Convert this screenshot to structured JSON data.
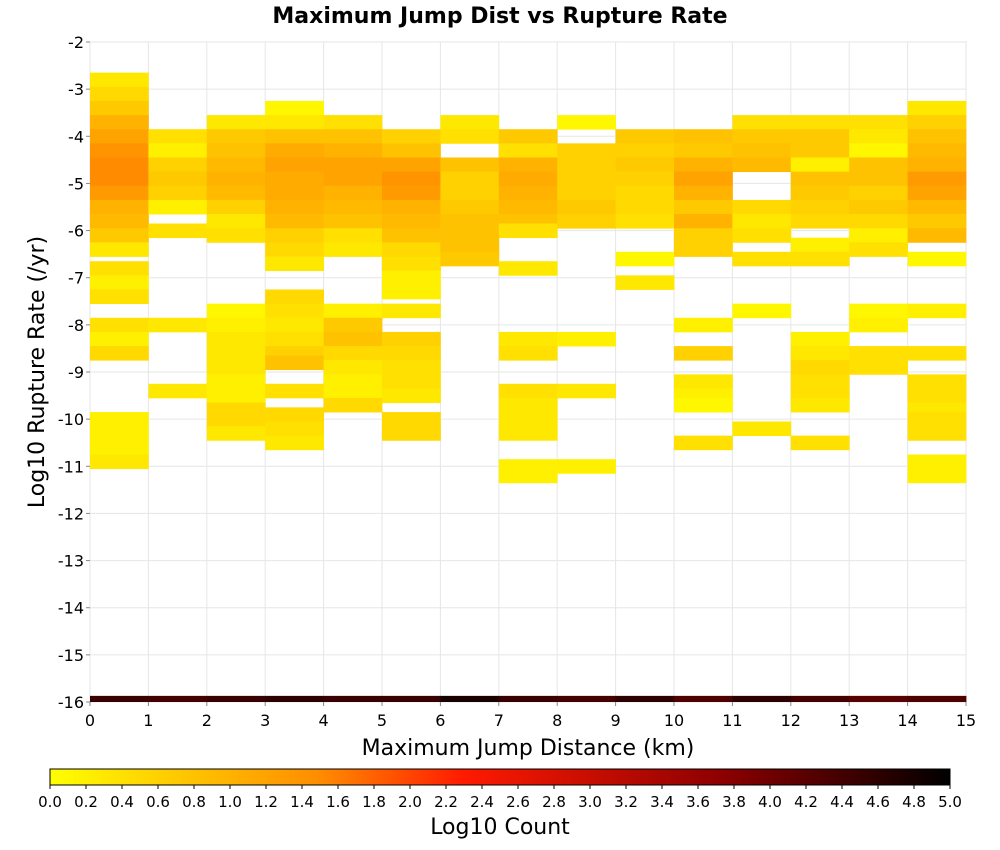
{
  "chart_data": {
    "type": "heatmap",
    "title": "Maximum Jump Dist vs Rupture Rate",
    "xlabel": "Maximum Jump Distance (km)",
    "ylabel": "Log10 Rupture Rate (/yr)",
    "xlim": [
      0,
      15
    ],
    "ylim": [
      -16,
      -2
    ],
    "x_ticks": [
      0,
      1,
      2,
      3,
      4,
      5,
      6,
      7,
      8,
      9,
      10,
      11,
      12,
      13,
      14,
      15
    ],
    "y_ticks": [
      -2,
      -3,
      -4,
      -5,
      -6,
      -7,
      -8,
      -9,
      -10,
      -11,
      -12,
      -13,
      -14,
      -15,
      -16
    ],
    "x_bin_width": 1,
    "y_bin_height": 0.3,
    "grid": true,
    "colorbar": {
      "label": "Log10 Count",
      "min": 0.0,
      "max": 5.0,
      "ticks": [
        "0.0",
        "0.2",
        "0.4",
        "0.6",
        "0.8",
        "1.0",
        "1.2",
        "1.4",
        "1.6",
        "1.8",
        "2.0",
        "2.2",
        "2.4",
        "2.6",
        "2.8",
        "3.0",
        "3.2",
        "3.4",
        "3.6",
        "3.8",
        "4.0",
        "4.2",
        "4.4",
        "4.6",
        "4.8",
        "5.0"
      ],
      "colors": [
        "#ffff00",
        "#ff6a00",
        "#ff0000",
        "#7f0000",
        "#000000"
      ]
    },
    "cells": [
      [
        0,
        -2.8,
        0.3
      ],
      [
        0,
        -3.1,
        0.5
      ],
      [
        0,
        -3.4,
        0.7
      ],
      [
        0,
        -3.7,
        1.0
      ],
      [
        0,
        -4.0,
        1.2
      ],
      [
        0,
        -4.3,
        1.4
      ],
      [
        0,
        -4.6,
        1.5
      ],
      [
        0,
        -4.9,
        1.5
      ],
      [
        0,
        -5.2,
        1.3
      ],
      [
        0,
        -5.5,
        1.0
      ],
      [
        0,
        -5.8,
        0.9
      ],
      [
        0,
        -6.1,
        0.7
      ],
      [
        0,
        -6.4,
        0.3
      ],
      [
        0,
        -6.8,
        0.4
      ],
      [
        0,
        -7.1,
        0.2
      ],
      [
        0,
        -7.4,
        0.4
      ],
      [
        0,
        -8.0,
        0.4
      ],
      [
        0,
        -8.3,
        0.2
      ],
      [
        0,
        -8.6,
        0.5
      ],
      [
        0,
        -10.0,
        0.2
      ],
      [
        0,
        -10.3,
        0.2
      ],
      [
        0,
        -10.6,
        0.2
      ],
      [
        0,
        -10.9,
        0.3
      ],
      [
        1,
        -4.0,
        0.4
      ],
      [
        1,
        -4.3,
        0.2
      ],
      [
        1,
        -4.6,
        0.6
      ],
      [
        1,
        -4.9,
        0.7
      ],
      [
        1,
        -5.2,
        0.6
      ],
      [
        1,
        -5.5,
        0.2
      ],
      [
        1,
        -6.0,
        0.4
      ],
      [
        1,
        -8.0,
        0.3
      ],
      [
        1,
        -9.4,
        0.3
      ],
      [
        2,
        -3.7,
        0.3
      ],
      [
        2,
        -4.0,
        0.7
      ],
      [
        2,
        -4.3,
        0.8
      ],
      [
        2,
        -4.6,
        0.9
      ],
      [
        2,
        -4.9,
        1.0
      ],
      [
        2,
        -5.2,
        0.9
      ],
      [
        2,
        -5.5,
        0.6
      ],
      [
        2,
        -5.8,
        0.3
      ],
      [
        2,
        -6.1,
        0.4
      ],
      [
        2,
        -7.7,
        0.1
      ],
      [
        2,
        -8.0,
        0.2
      ],
      [
        2,
        -8.3,
        0.3
      ],
      [
        2,
        -8.6,
        0.3
      ],
      [
        2,
        -8.9,
        0.3
      ],
      [
        2,
        -9.2,
        0.2
      ],
      [
        2,
        -9.5,
        0.2
      ],
      [
        2,
        -9.8,
        0.5
      ],
      [
        2,
        -10.1,
        0.5
      ],
      [
        2,
        -10.3,
        0.3
      ],
      [
        3,
        -3.4,
        0.1
      ],
      [
        3,
        -3.7,
        0.3
      ],
      [
        3,
        -4.0,
        0.8
      ],
      [
        3,
        -4.3,
        1.1
      ],
      [
        3,
        -4.6,
        1.2
      ],
      [
        3,
        -4.9,
        1.1
      ],
      [
        3,
        -5.2,
        1.1
      ],
      [
        3,
        -5.5,
        1.0
      ],
      [
        3,
        -5.8,
        0.9
      ],
      [
        3,
        -6.1,
        0.6
      ],
      [
        3,
        -6.4,
        0.5
      ],
      [
        3,
        -6.7,
        0.3
      ],
      [
        3,
        -7.4,
        0.5
      ],
      [
        3,
        -7.7,
        0.4
      ],
      [
        3,
        -8.0,
        0.3
      ],
      [
        3,
        -8.3,
        0.4
      ],
      [
        3,
        -8.6,
        0.6
      ],
      [
        3,
        -8.8,
        0.8
      ],
      [
        3,
        -9.4,
        0.4
      ],
      [
        3,
        -9.9,
        0.5
      ],
      [
        3,
        -10.2,
        0.4
      ],
      [
        3,
        -10.5,
        0.3
      ],
      [
        4,
        -3.7,
        0.4
      ],
      [
        4,
        -4.0,
        0.8
      ],
      [
        4,
        -4.3,
        1.0
      ],
      [
        4,
        -4.6,
        1.2
      ],
      [
        4,
        -4.9,
        1.2
      ],
      [
        4,
        -5.2,
        1.0
      ],
      [
        4,
        -5.5,
        0.9
      ],
      [
        4,
        -5.8,
        0.8
      ],
      [
        4,
        -6.1,
        0.4
      ],
      [
        4,
        -6.4,
        0.3
      ],
      [
        4,
        -7.7,
        0.2
      ],
      [
        4,
        -8.0,
        0.7
      ],
      [
        4,
        -8.3,
        0.8
      ],
      [
        4,
        -8.6,
        0.5
      ],
      [
        4,
        -8.9,
        0.3
      ],
      [
        4,
        -9.2,
        0.2
      ],
      [
        4,
        -9.5,
        0.2
      ],
      [
        4,
        -9.7,
        0.5
      ],
      [
        5,
        -4.0,
        0.6
      ],
      [
        5,
        -4.3,
        0.8
      ],
      [
        5,
        -4.6,
        1.2
      ],
      [
        5,
        -4.9,
        1.4
      ],
      [
        5,
        -5.2,
        1.3
      ],
      [
        5,
        -5.5,
        1.0
      ],
      [
        5,
        -5.8,
        0.9
      ],
      [
        5,
        -6.1,
        0.8
      ],
      [
        5,
        -6.4,
        0.5
      ],
      [
        5,
        -6.7,
        0.4
      ],
      [
        5,
        -7.0,
        0.2
      ],
      [
        5,
        -7.3,
        0.2
      ],
      [
        5,
        -7.7,
        0.3
      ],
      [
        5,
        -8.3,
        0.6
      ],
      [
        5,
        -8.6,
        0.5
      ],
      [
        5,
        -8.9,
        0.4
      ],
      [
        5,
        -9.2,
        0.4
      ],
      [
        5,
        -9.5,
        0.3
      ],
      [
        5,
        -10.0,
        0.5
      ],
      [
        5,
        -10.3,
        0.5
      ],
      [
        6,
        -3.7,
        0.3
      ],
      [
        6,
        -4.0,
        0.4
      ],
      [
        6,
        -4.6,
        0.8
      ],
      [
        6,
        -4.9,
        0.6
      ],
      [
        6,
        -5.2,
        0.6
      ],
      [
        6,
        -5.5,
        0.7
      ],
      [
        6,
        -5.8,
        0.8
      ],
      [
        6,
        -6.1,
        0.8
      ],
      [
        6,
        -6.4,
        0.8
      ],
      [
        6,
        -6.6,
        0.7
      ],
      [
        7,
        -4.0,
        0.7
      ],
      [
        7,
        -4.3,
        0.4
      ],
      [
        7,
        -4.6,
        1.0
      ],
      [
        7,
        -4.9,
        1.1
      ],
      [
        7,
        -5.2,
        1.0
      ],
      [
        7,
        -5.5,
        0.9
      ],
      [
        7,
        -5.8,
        0.8
      ],
      [
        7,
        -6.0,
        0.4
      ],
      [
        7,
        -6.8,
        0.3
      ],
      [
        7,
        -8.3,
        0.3
      ],
      [
        7,
        -8.6,
        0.4
      ],
      [
        7,
        -9.4,
        0.4
      ],
      [
        7,
        -9.7,
        0.3
      ],
      [
        7,
        -10.0,
        0.3
      ],
      [
        7,
        -10.3,
        0.3
      ],
      [
        7,
        -11.0,
        0.2
      ],
      [
        7,
        -11.2,
        0.2
      ],
      [
        8,
        -3.7,
        0.1
      ],
      [
        8,
        -4.3,
        0.6
      ],
      [
        8,
        -4.6,
        0.6
      ],
      [
        8,
        -4.9,
        0.6
      ],
      [
        8,
        -5.2,
        0.6
      ],
      [
        8,
        -5.5,
        0.7
      ],
      [
        8,
        -5.8,
        0.6
      ],
      [
        8,
        -8.3,
        0.2
      ],
      [
        8,
        -9.4,
        0.3
      ],
      [
        8,
        -11.0,
        0.2
      ],
      [
        9,
        -4.0,
        0.7
      ],
      [
        9,
        -4.3,
        0.6
      ],
      [
        9,
        -4.6,
        0.7
      ],
      [
        9,
        -4.9,
        0.6
      ],
      [
        9,
        -5.2,
        0.5
      ],
      [
        9,
        -5.5,
        0.5
      ],
      [
        9,
        -5.8,
        0.4
      ],
      [
        9,
        -6.6,
        0.1
      ],
      [
        9,
        -7.1,
        0.3
      ],
      [
        10,
        -4.0,
        0.8
      ],
      [
        10,
        -4.3,
        0.7
      ],
      [
        10,
        -4.6,
        1.0
      ],
      [
        10,
        -4.9,
        1.2
      ],
      [
        10,
        -5.2,
        1.0
      ],
      [
        10,
        -5.5,
        0.7
      ],
      [
        10,
        -5.8,
        1.0
      ],
      [
        10,
        -6.1,
        0.6
      ],
      [
        10,
        -6.4,
        0.6
      ],
      [
        10,
        -8.0,
        0.2
      ],
      [
        10,
        -8.6,
        0.6
      ],
      [
        10,
        -9.2,
        0.3
      ],
      [
        10,
        -9.5,
        0.2
      ],
      [
        10,
        -9.7,
        0.1
      ],
      [
        10,
        -10.5,
        0.4
      ],
      [
        11,
        -3.7,
        0.4
      ],
      [
        11,
        -4.0,
        0.7
      ],
      [
        11,
        -4.3,
        0.8
      ],
      [
        11,
        -4.6,
        0.9
      ],
      [
        11,
        -5.5,
        0.5
      ],
      [
        11,
        -5.8,
        0.3
      ],
      [
        11,
        -6.1,
        0.4
      ],
      [
        11,
        -6.6,
        0.4
      ],
      [
        11,
        -7.7,
        0.1
      ],
      [
        11,
        -10.2,
        0.3
      ],
      [
        12,
        -3.7,
        0.4
      ],
      [
        12,
        -4.0,
        0.7
      ],
      [
        12,
        -4.3,
        0.7
      ],
      [
        12,
        -4.6,
        0.2
      ],
      [
        12,
        -4.9,
        0.8
      ],
      [
        12,
        -5.2,
        0.7
      ],
      [
        12,
        -5.5,
        0.6
      ],
      [
        12,
        -5.8,
        0.5
      ],
      [
        12,
        -6.3,
        0.2
      ],
      [
        12,
        -6.6,
        0.4
      ],
      [
        12,
        -8.3,
        0.2
      ],
      [
        12,
        -8.6,
        0.3
      ],
      [
        12,
        -8.9,
        0.5
      ],
      [
        12,
        -9.2,
        0.4
      ],
      [
        12,
        -9.5,
        0.4
      ],
      [
        12,
        -9.7,
        0.3
      ],
      [
        12,
        -10.5,
        0.4
      ],
      [
        13,
        -3.7,
        0.4
      ],
      [
        13,
        -4.0,
        0.3
      ],
      [
        13,
        -4.3,
        0.1
      ],
      [
        13,
        -4.6,
        0.8
      ],
      [
        13,
        -4.9,
        0.8
      ],
      [
        13,
        -5.2,
        0.6
      ],
      [
        13,
        -5.5,
        0.7
      ],
      [
        13,
        -5.8,
        0.5
      ],
      [
        13,
        -6.1,
        0.2
      ],
      [
        13,
        -6.4,
        0.4
      ],
      [
        13,
        -7.7,
        0.1
      ],
      [
        13,
        -8.0,
        0.2
      ],
      [
        13,
        -8.6,
        0.4
      ],
      [
        13,
        -8.9,
        0.4
      ],
      [
        14,
        -3.4,
        0.3
      ],
      [
        14,
        -3.7,
        0.6
      ],
      [
        14,
        -4.0,
        0.8
      ],
      [
        14,
        -4.3,
        0.9
      ],
      [
        14,
        -4.6,
        1.0
      ],
      [
        14,
        -4.9,
        1.3
      ],
      [
        14,
        -5.2,
        1.2
      ],
      [
        14,
        -5.5,
        0.9
      ],
      [
        14,
        -5.8,
        0.7
      ],
      [
        14,
        -6.1,
        0.9
      ],
      [
        14,
        -6.6,
        0.1
      ],
      [
        14,
        -7.7,
        0.2
      ],
      [
        14,
        -8.6,
        0.4
      ],
      [
        14,
        -9.2,
        0.4
      ],
      [
        14,
        -9.5,
        0.4
      ],
      [
        14,
        -9.8,
        0.3
      ],
      [
        14,
        -10.0,
        0.4
      ],
      [
        14,
        -10.3,
        0.4
      ],
      [
        14,
        -10.9,
        0.2
      ],
      [
        14,
        -11.2,
        0.2
      ]
    ],
    "floor_row": {
      "y": -16.0,
      "values": [
        4.5,
        4.4,
        4.5,
        4.6,
        4.5,
        4.5,
        4.8,
        4.5,
        4.4,
        4.6,
        4.3,
        4.6,
        4.4,
        4.2,
        4.3
      ]
    }
  }
}
